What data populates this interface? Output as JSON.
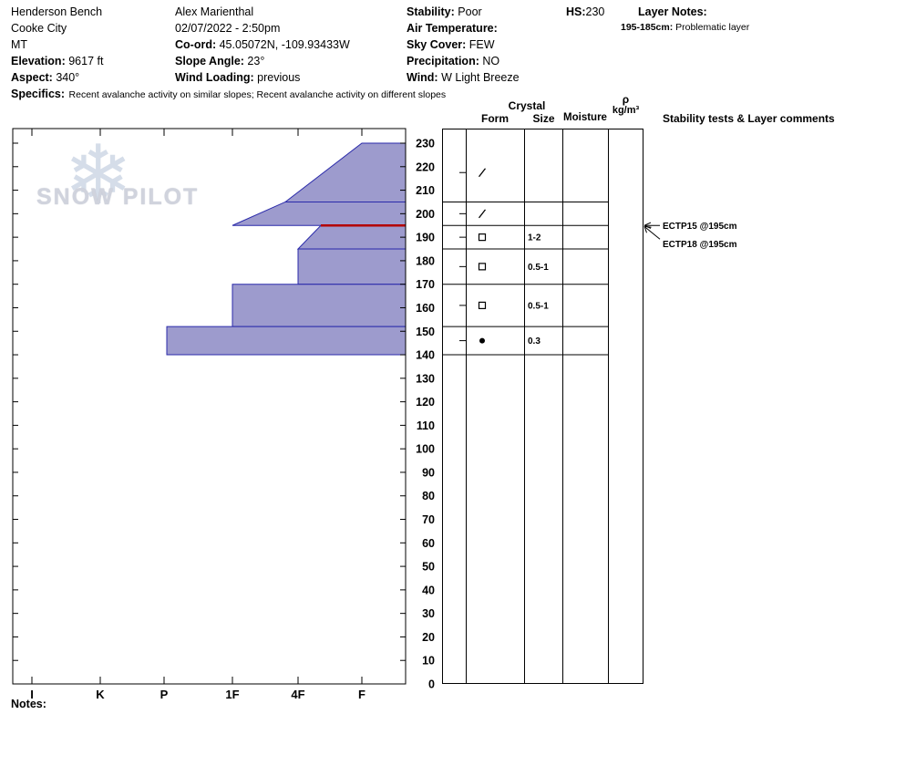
{
  "header": {
    "site": "Henderson Bench",
    "locale": "Cooke City",
    "state": "MT",
    "elevation_label": "Elevation:",
    "elevation_value": "9617 ft",
    "aspect_label": "Aspect:",
    "aspect_value": "340°",
    "observer": "Alex Marienthal",
    "datetime": "02/07/2022 - 2:50pm",
    "coord_label": "Co-ord:",
    "coord_value": "45.05072N, -109.93433W",
    "slope_angle_label": "Slope Angle:",
    "slope_angle_value": "23°",
    "wind_loading_label": "Wind Loading:",
    "wind_loading_value": "previous",
    "stability_label": "Stability:",
    "stability_value": "Poor",
    "air_temp_label": "Air Temperature:",
    "air_temp_value": "",
    "sky_cover_label": "Sky Cover:",
    "sky_cover_value": "FEW",
    "precipitation_label": "Precipitation:",
    "precipitation_value": "NO",
    "wind_label": "Wind:",
    "wind_value": "W Light Breeze",
    "hs_label": "HS:",
    "hs_value": "230",
    "layer_notes_label": "Layer Notes:",
    "layer_note_range": "195-185cm:",
    "layer_note_text": "Problematic layer",
    "specifics_label": "Specifics:",
    "specifics_text": "Recent avalanche activity on similar slopes; Recent avalanche activity on different slopes"
  },
  "columns": {
    "crystal": "Crystal",
    "form": "Form",
    "size": "Size",
    "moisture": "Moisture",
    "rho_symbol": "ρ",
    "rho_units": "kg/m³",
    "stability_header": "Stability tests & Layer comments"
  },
  "watermark": {
    "text": "SNOW PILOT"
  },
  "notes_label": "Notes:",
  "chart_data": {
    "type": "bar",
    "subtype": "snow-hardness-profile",
    "title": "Snowpit hardness profile",
    "depth_axis": {
      "unit": "cm",
      "min": 0,
      "max": 230,
      "tick_step": 10
    },
    "hardness_axis": {
      "categories": [
        "I",
        "K",
        "P",
        "1F",
        "4F",
        "F"
      ]
    },
    "total_snow_height_cm": 230,
    "pit_bottom_cm": 140,
    "layers": [
      {
        "top_cm": 230,
        "bottom_cm": 205,
        "hardness_top": "F",
        "hardness_bottom": "4F+",
        "grain_form": "DF",
        "symbol": "slash",
        "grain_size_mm": "",
        "moisture": "",
        "density": ""
      },
      {
        "top_cm": 205,
        "bottom_cm": 195,
        "hardness_top": "4F+",
        "hardness_bottom": "1F",
        "grain_form": "DF",
        "symbol": "slash",
        "grain_size_mm": "",
        "moisture": "",
        "density": ""
      },
      {
        "top_cm": 195,
        "bottom_cm": 185,
        "hardness_top": "4F-",
        "hardness_bottom": "4F",
        "grain_form": "FC",
        "symbol": "square",
        "grain_size_mm": "1-2",
        "moisture": "",
        "density": ""
      },
      {
        "top_cm": 185,
        "bottom_cm": 170,
        "hardness_top": "4F",
        "hardness_bottom": "4F",
        "grain_form": "FC",
        "symbol": "square",
        "grain_size_mm": "0.5-1",
        "moisture": "",
        "density": ""
      },
      {
        "top_cm": 170,
        "bottom_cm": 152,
        "hardness_top": "1F",
        "hardness_bottom": "1F",
        "grain_form": "FC",
        "symbol": "square",
        "grain_size_mm": "0.5-1",
        "moisture": "",
        "density": ""
      },
      {
        "top_cm": 152,
        "bottom_cm": 140,
        "hardness_top": "P+",
        "hardness_bottom": "P+",
        "grain_form": "RG",
        "symbol": "dot",
        "grain_size_mm": "0.3",
        "moisture": "",
        "density": ""
      }
    ],
    "flagged_depth_cm": 195,
    "stability_tests": [
      {
        "label": "ECTP15 @195cm",
        "depth_cm": 195
      },
      {
        "label": "ECTP18 @195cm",
        "depth_cm": 195
      }
    ],
    "colors": {
      "layer_fill": "#9593c9",
      "layer_stroke": "#2a2aaa",
      "flag_line": "#b40000"
    }
  }
}
